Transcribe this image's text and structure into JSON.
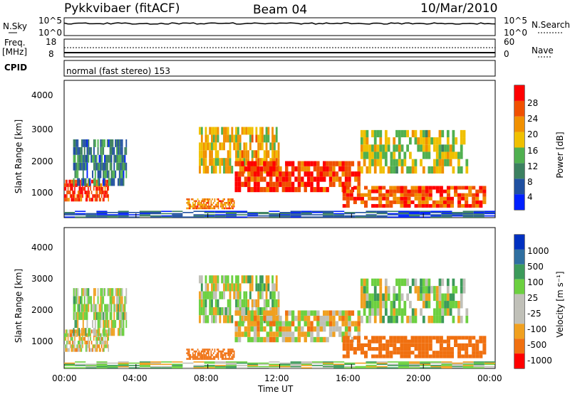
{
  "header": {
    "station": "Pykkvibaer (fitACF)",
    "beam": "Beam 04",
    "date": "10/Mar/2010"
  },
  "noise_panel": {
    "left_label": "N.Sky",
    "right_label": "N.Search",
    "left_ticks": [
      "10^5",
      "10^0"
    ],
    "right_ticks": [
      "10^5",
      "10^0"
    ]
  },
  "freq_panel": {
    "left_label_1": "Freq.",
    "left_label_2": "[MHz]",
    "right_label": "Nave",
    "left_ticks": [
      "18",
      "8"
    ],
    "right_ticks": [
      "60",
      "0"
    ]
  },
  "cpid_panel": {
    "label": "CPID",
    "text": "normal (fast stereo) 153"
  },
  "power_panel": {
    "ylabel": "Slant Range [km]",
    "yticks": [
      "4000",
      "3000",
      "2000",
      "1000"
    ],
    "colorbar_label": "Power [dB]",
    "colorbar_ticks": [
      "28",
      "24",
      "20",
      "16",
      "12",
      "8",
      "4"
    ],
    "colors": [
      "#0020ff",
      "#2050a0",
      "#3c8060",
      "#50b050",
      "#f0c000",
      "#f09000",
      "#f05000",
      "#ff0000"
    ]
  },
  "velocity_panel": {
    "ylabel": "Slant Range [km]",
    "yticks": [
      "4000",
      "3000",
      "2000",
      "1000"
    ],
    "colorbar_label": "Velocity [m s⁻¹]",
    "colorbar_ticks": [
      "1000",
      "500",
      "100",
      "25",
      "-25",
      "-100",
      "-500",
      "-1000"
    ],
    "colors": [
      "#0030c0",
      "#2f6fa0",
      "#3c9a5a",
      "#6cd040",
      "#c0c0b8",
      "#c0c0b8",
      "#f0a020",
      "#f07010",
      "#ff0000"
    ]
  },
  "x_axis": {
    "label": "Time UT",
    "ticks": [
      "00:00",
      "04:00",
      "08:00",
      "12:00",
      "16:00",
      "20:00",
      "00:00"
    ]
  },
  "chart_data": {
    "type": "heatmap",
    "x_range_hours": [
      0,
      24
    ],
    "y_range_km": [
      180,
      4600
    ],
    "power_db_range": [
      0,
      30
    ],
    "velocity_range_ms": [
      -1000,
      1000
    ],
    "echo_regions": [
      {
        "t0": 0.0,
        "t1": 2.5,
        "r0": 700,
        "r1": 1400,
        "power": 26,
        "velocity": -25
      },
      {
        "t0": 0.5,
        "t1": 3.5,
        "r0": 1200,
        "r1": 2700,
        "power": 8,
        "velocity": 25
      },
      {
        "t0": 6.8,
        "t1": 9.5,
        "r0": 450,
        "r1": 800,
        "power": 22,
        "velocity": -300
      },
      {
        "t0": 7.5,
        "t1": 12.0,
        "r0": 1600,
        "r1": 3100,
        "power": 18,
        "velocity": 25
      },
      {
        "t0": 9.5,
        "t1": 16.5,
        "r0": 1000,
        "r1": 2000,
        "power": 26,
        "velocity": -25
      },
      {
        "t0": 15.5,
        "t1": 23.5,
        "r0": 500,
        "r1": 1200,
        "power": 25,
        "velocity": -200
      },
      {
        "t0": 16.5,
        "t1": 22.5,
        "r0": 1600,
        "r1": 3000,
        "power": 16,
        "velocity": 25
      },
      {
        "t0": 0.0,
        "t1": 24.0,
        "r0": 180,
        "r1": 400,
        "power": 6,
        "velocity": 50
      }
    ]
  }
}
